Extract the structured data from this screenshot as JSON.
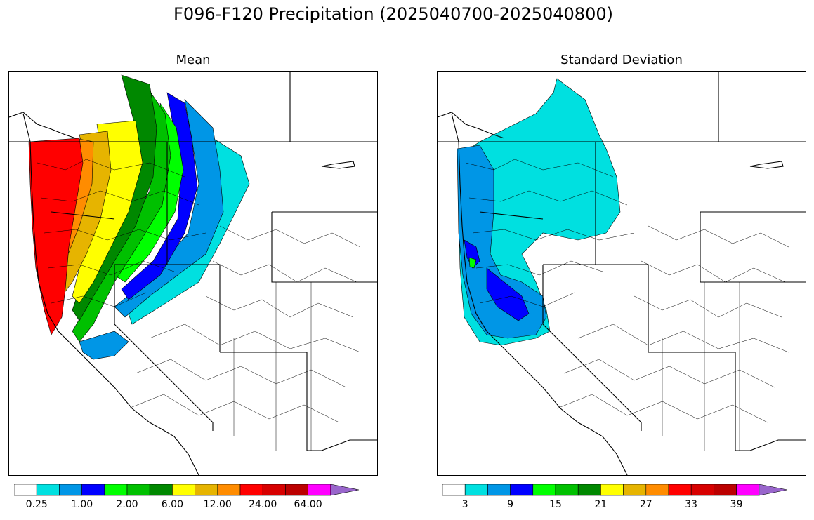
{
  "title": "F096-F120 Precipitation (2025040700-2025040800)",
  "colors": [
    "#ffffff",
    "#00e0e0",
    "#0096e6",
    "#0000ff",
    "#00ff00",
    "#00c000",
    "#008800",
    "#ffff00",
    "#e6b400",
    "#ff8c00",
    "#ff0000",
    "#d70000",
    "#bb0000",
    "#ff00ff",
    "#9966cc"
  ],
  "panels": [
    {
      "id": "mean",
      "title": "Mean",
      "colorbar_ticks": [
        "0.25",
        "1.00",
        "2.00",
        "6.00",
        "12.00",
        "24.00",
        "64.00"
      ]
    },
    {
      "id": "std",
      "title": "Standard Deviation",
      "colorbar_ticks": [
        "3",
        "9",
        "15",
        "21",
        "27",
        "33",
        "39"
      ]
    }
  ]
}
